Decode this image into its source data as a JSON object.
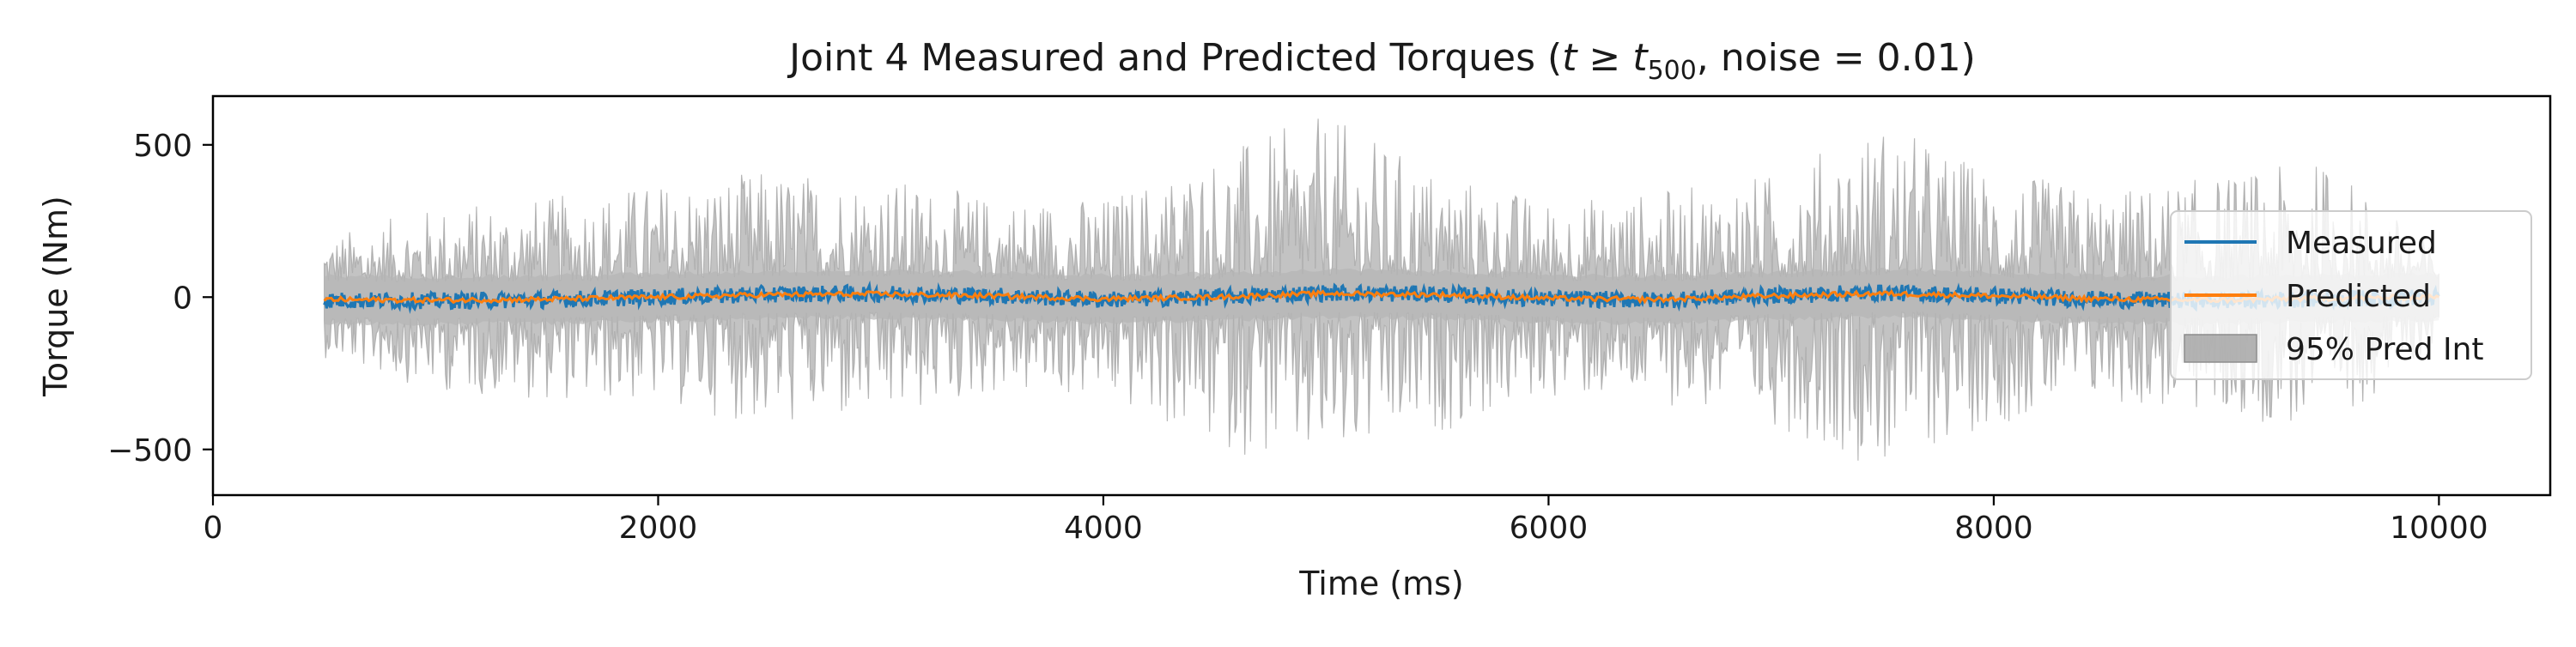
{
  "chart_data": {
    "type": "line",
    "title": "Joint 4 Measured and Predicted Torques (t ≥ t500, noise = 0.01)",
    "title_parts": {
      "prefix": "Joint 4 Measured and Predicted Torques (",
      "var": "t",
      "geq": " ≥ ",
      "var2": "t",
      "sub": "500",
      "suffix": ", noise = 0.01)"
    },
    "xlabel": "Time (ms)",
    "ylabel": "Torque (Nm)",
    "xlim": [
      0,
      10500
    ],
    "ylim": [
      -650,
      660
    ],
    "xticks": [
      0,
      2000,
      4000,
      6000,
      8000,
      10000
    ],
    "xtick_labels": [
      "0",
      "2000",
      "4000",
      "6000",
      "8000",
      "10000"
    ],
    "yticks": [
      -500,
      0,
      500
    ],
    "ytick_labels": [
      "−500",
      "0",
      "500"
    ],
    "grid": false,
    "legend": {
      "placement": "right",
      "entries": [
        {
          "label": "Measured",
          "kind": "line",
          "color": "#1f77b4"
        },
        {
          "label": "Predicted",
          "kind": "line",
          "color": "#ff7f0e"
        },
        {
          "label": "95% Pred Int",
          "kind": "patch",
          "color": "#a6a6a6"
        }
      ]
    },
    "x_range": [
      500,
      10000
    ],
    "series": [
      {
        "name": "Measured",
        "color": "#1f77b4",
        "x": [
          500,
          1000,
          1500,
          2000,
          2500,
          3000,
          3500,
          4000,
          4500,
          5000,
          5500,
          6000,
          6500,
          7000,
          7500,
          8000,
          8500,
          9000,
          9500,
          10000
        ],
        "values": [
          -10,
          -12,
          -8,
          0,
          10,
          12,
          5,
          -8,
          0,
          14,
          10,
          -5,
          -10,
          5,
          15,
          5,
          -8,
          -12,
          -5,
          0
        ]
      },
      {
        "name": "Predicted",
        "color": "#ff7f0e",
        "x": [
          500,
          1000,
          1500,
          2000,
          2500,
          3000,
          3500,
          4000,
          4500,
          5000,
          5500,
          6000,
          6500,
          7000,
          7500,
          8000,
          8500,
          9000,
          9500,
          10000
        ],
        "values": [
          -8,
          -10,
          -7,
          0,
          8,
          10,
          4,
          -6,
          0,
          12,
          8,
          -4,
          -8,
          4,
          12,
          4,
          -6,
          -10,
          -4,
          0
        ]
      },
      {
        "name": "95% Pred Int",
        "color": "#a6a6a6",
        "x": [
          500,
          1000,
          1500,
          2000,
          2500,
          3000,
          3500,
          4000,
          4500,
          5000,
          5500,
          6000,
          6500,
          7000,
          7500,
          8000,
          8500,
          9000,
          9500,
          10000
        ],
        "upper": [
          200,
          300,
          330,
          380,
          420,
          400,
          330,
          330,
          480,
          600,
          420,
          320,
          350,
          410,
          580,
          420,
          350,
          400,
          450,
          150
        ],
        "lower": [
          -200,
          -310,
          -340,
          -350,
          -430,
          -420,
          -320,
          -340,
          -500,
          -580,
          -450,
          -330,
          -350,
          -420,
          -570,
          -420,
          -350,
          -400,
          -440,
          -150
        ]
      }
    ]
  }
}
